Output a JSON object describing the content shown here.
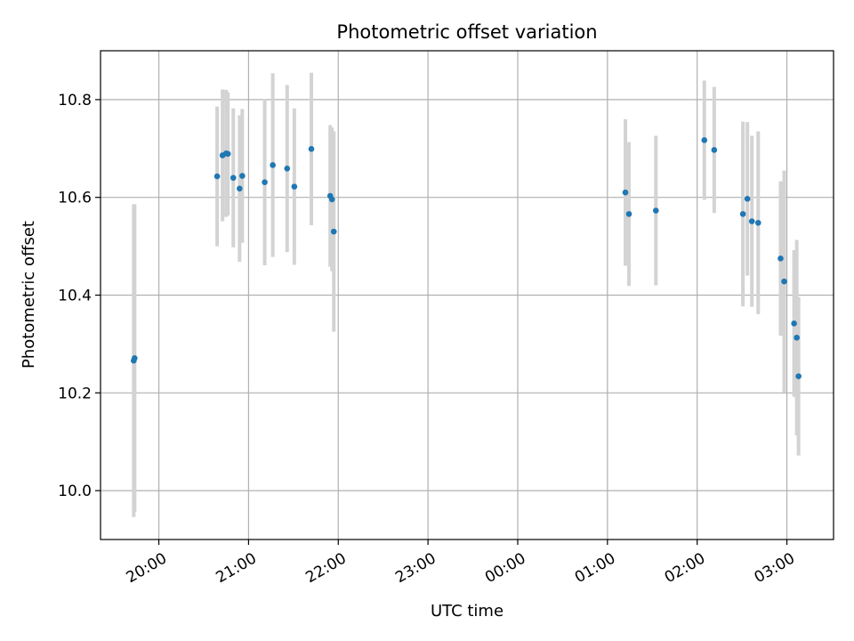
{
  "chart_data": {
    "type": "scatter",
    "title": "Photometric offset variation",
    "xlabel": "UTC time",
    "ylabel": "Photometric offset",
    "x_unit": "hours since 00:00 UTC (negative = previous day)",
    "xlim": [
      -4.65,
      3.52
    ],
    "ylim": [
      9.9,
      10.9
    ],
    "grid": true,
    "x_ticks": [
      {
        "value": -4,
        "label": "20:00"
      },
      {
        "value": -3,
        "label": "21:00"
      },
      {
        "value": -2,
        "label": "22:00"
      },
      {
        "value": -1,
        "label": "23:00"
      },
      {
        "value": 0,
        "label": "00:00"
      },
      {
        "value": 1,
        "label": "01:00"
      },
      {
        "value": 2,
        "label": "02:00"
      },
      {
        "value": 3,
        "label": "03:00"
      }
    ],
    "y_ticks": [
      {
        "value": 10.0,
        "label": "10.0"
      },
      {
        "value": 10.2,
        "label": "10.2"
      },
      {
        "value": 10.4,
        "label": "10.4"
      },
      {
        "value": 10.6,
        "label": "10.6"
      },
      {
        "value": 10.8,
        "label": "10.8"
      }
    ],
    "colors": {
      "point": "#1f77b4",
      "errorbar": "#d3d3d3",
      "grid": "#b0b0b0",
      "axes": "#000000"
    },
    "series": [
      {
        "name": "Photometric offset",
        "points": [
          {
            "x": -4.28,
            "y": 10.266,
            "yerr": 0.32
          },
          {
            "x": -4.27,
            "y": 10.271,
            "yerr": 0.315
          },
          {
            "x": -3.35,
            "y": 10.643,
            "yerr": 0.143
          },
          {
            "x": -3.29,
            "y": 10.686,
            "yerr": 0.135
          },
          {
            "x": -3.25,
            "y": 10.69,
            "yerr": 0.13
          },
          {
            "x": -3.23,
            "y": 10.689,
            "yerr": 0.126
          },
          {
            "x": -3.17,
            "y": 10.64,
            "yerr": 0.142
          },
          {
            "x": -3.1,
            "y": 10.618,
            "yerr": 0.15
          },
          {
            "x": -3.07,
            "y": 10.644,
            "yerr": 0.137
          },
          {
            "x": -2.82,
            "y": 10.631,
            "yerr": 0.17
          },
          {
            "x": -2.73,
            "y": 10.666,
            "yerr": 0.188
          },
          {
            "x": -2.57,
            "y": 10.659,
            "yerr": 0.171
          },
          {
            "x": -2.49,
            "y": 10.622,
            "yerr": 0.16
          },
          {
            "x": -2.3,
            "y": 10.699,
            "yerr": 0.156
          },
          {
            "x": -2.09,
            "y": 10.603,
            "yerr": 0.145
          },
          {
            "x": -2.07,
            "y": 10.596,
            "yerr": 0.147
          },
          {
            "x": -2.05,
            "y": 10.53,
            "yerr": 0.205
          },
          {
            "x": 1.2,
            "y": 10.61,
            "yerr": 0.15
          },
          {
            "x": 1.24,
            "y": 10.566,
            "yerr": 0.147
          },
          {
            "x": 1.54,
            "y": 10.573,
            "yerr": 0.153
          },
          {
            "x": 2.08,
            "y": 10.717,
            "yerr": 0.122
          },
          {
            "x": 2.19,
            "y": 10.697,
            "yerr": 0.129
          },
          {
            "x": 2.51,
            "y": 10.566,
            "yerr": 0.189
          },
          {
            "x": 2.56,
            "y": 10.597,
            "yerr": 0.157
          },
          {
            "x": 2.61,
            "y": 10.551,
            "yerr": 0.175
          },
          {
            "x": 2.68,
            "y": 10.548,
            "yerr": 0.187
          },
          {
            "x": 2.93,
            "y": 10.475,
            "yerr": 0.158
          },
          {
            "x": 2.97,
            "y": 10.428,
            "yerr": 0.227
          },
          {
            "x": 3.08,
            "y": 10.342,
            "yerr": 0.15
          },
          {
            "x": 3.11,
            "y": 10.313,
            "yerr": 0.2
          },
          {
            "x": 3.13,
            "y": 10.234,
            "yerr": 0.162
          }
        ]
      }
    ]
  }
}
